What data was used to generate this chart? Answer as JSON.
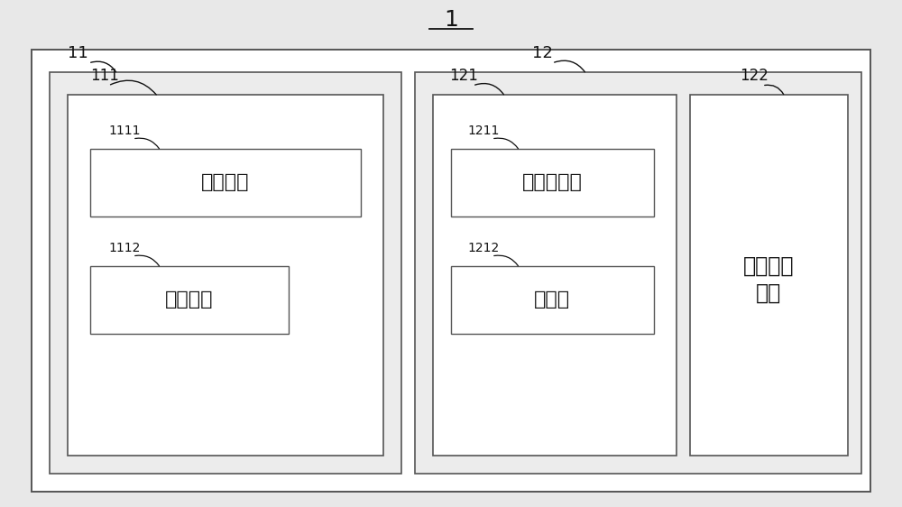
{
  "bg_color": "#e8e8e8",
  "fig_bg": "#d8d8d8",
  "white": "#ffffff",
  "light_gray": "#ececec",
  "edge_color": "#555555",
  "text_color": "#111111",
  "title": "1",
  "labels": {
    "box1": "11",
    "box2": "12",
    "sub1": "111",
    "sub2_left": "121",
    "sub2_right": "122",
    "leaf1": "1111",
    "leaf2": "1112",
    "leaf3": "1211",
    "leaf4": "1212"
  },
  "texts": {
    "leaf1": "超声探头",
    "leaf2": "固定装置",
    "leaf3": "光学感应器",
    "leaf4": "摄像头",
    "sub2_right_line1": "影像处理",
    "sub2_right_line2": "模块"
  },
  "lw_outer": 1.4,
  "lw_mid": 1.2,
  "lw_leaf": 1.0
}
